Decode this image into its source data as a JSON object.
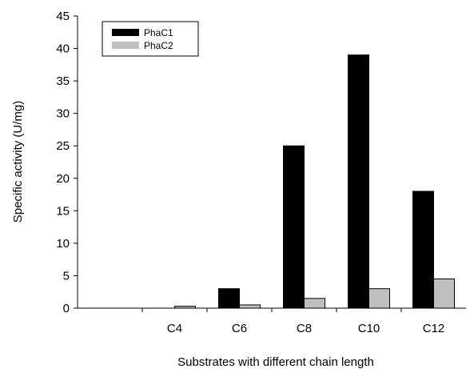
{
  "chart_data": {
    "type": "bar",
    "title": "",
    "xlabel": "Substrates with different chain length",
    "ylabel": "Specific activity (U/mg)",
    "ylim": [
      0,
      45
    ],
    "yticks": [
      "0",
      "5",
      "10",
      "15",
      "20",
      "25",
      "30",
      "35",
      "40",
      "45"
    ],
    "categories": [
      "",
      "C4",
      "C6",
      "C8",
      "C10",
      "C12"
    ],
    "series": [
      {
        "name": "PhaC1",
        "color": "#000000",
        "values": [
          0,
          0,
          3,
          25,
          39,
          18
        ]
      },
      {
        "name": "PhaC2",
        "color": "#c0c0c0",
        "values": [
          0,
          0.3,
          0.5,
          1.5,
          3,
          4.5
        ]
      }
    ],
    "grid": false,
    "legend_position": "top-left"
  }
}
